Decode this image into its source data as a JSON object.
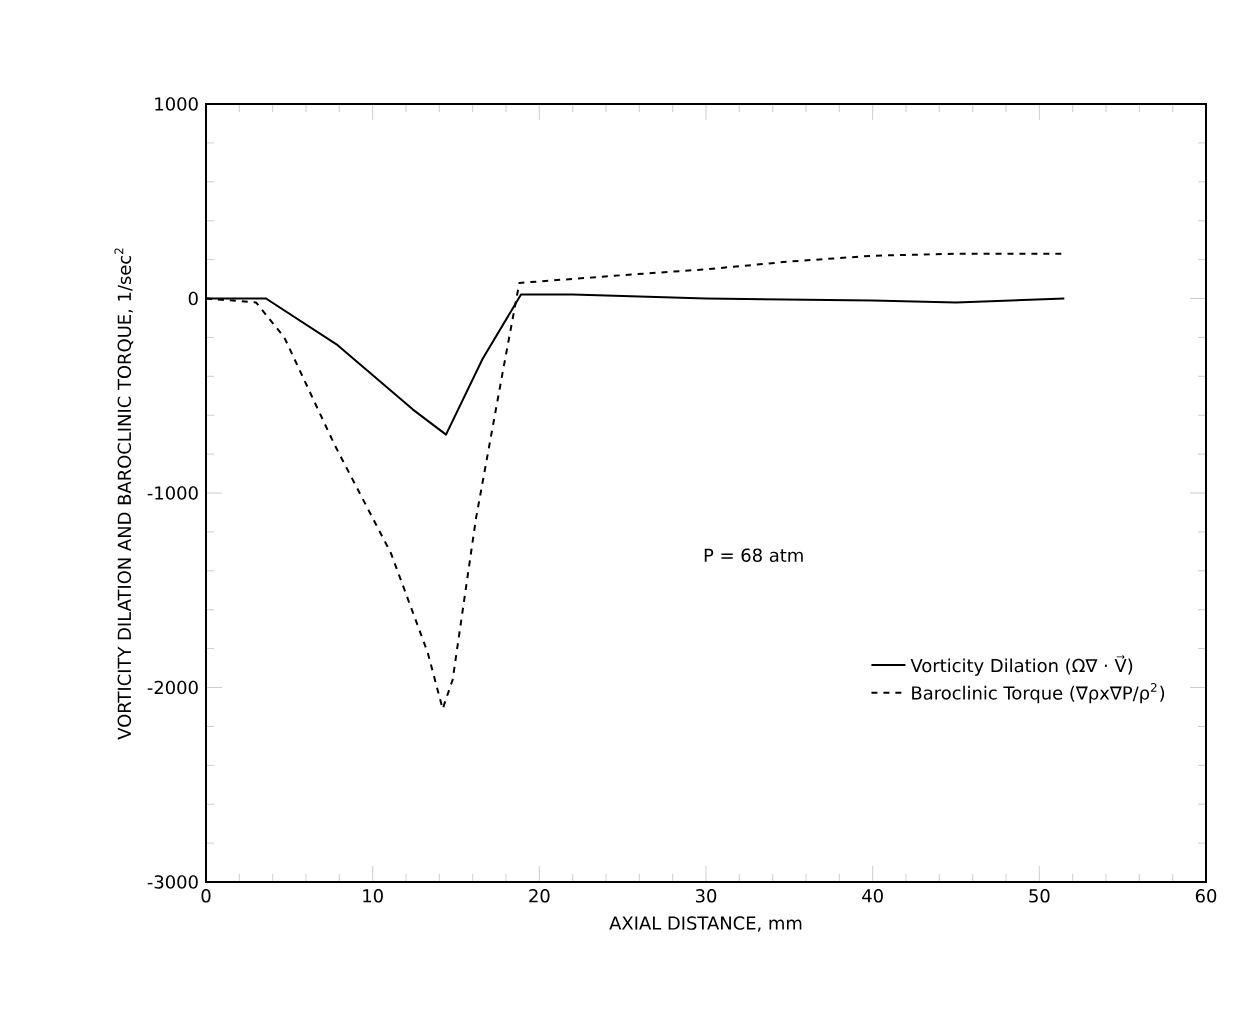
{
  "chart_data": {
    "type": "line",
    "xlabel": "AXIAL DISTANCE, mm",
    "ylabel": "VORTICITY DILATION AND BAROCLINIC TORQUE, 1/sec$^{2}$",
    "xlim": [
      0,
      60
    ],
    "xticks": [
      0,
      10,
      20,
      30,
      40,
      50,
      60
    ],
    "ylim": [
      -3000,
      1000
    ],
    "yticks": [
      -3000,
      -2000,
      -1000,
      0,
      1000
    ],
    "legend": "right",
    "annotations": [
      "P = 68 atm"
    ],
    "series": [
      {
        "name": "Vorticity Dilation (Ω∇ · V⃗)",
        "color": "#000000",
        "line_style": "solid",
        "x": [
          0,
          3.6,
          7.9,
          12.4,
          14.4,
          16.6,
          18.9,
          22,
          30,
          40,
          45,
          51.5
        ],
        "values": [
          0,
          0,
          -240,
          -570,
          -700,
          -310,
          20,
          20,
          0,
          -10,
          -20,
          0
        ]
      },
      {
        "name": "Baroclinic Torque (∇ρx∇P/ρ$^{2}$)",
        "color": "#000000",
        "line_style": "dashed",
        "x": [
          0,
          3,
          4.7,
          7.7,
          11.1,
          13.3,
          14.2,
          14.8,
          16.2,
          17.8,
          18.8,
          25,
          30,
          35,
          40,
          45,
          51.5
        ],
        "values": [
          0,
          -20,
          -200,
          -750,
          -1310,
          -1820,
          -2110,
          -1960,
          -1130,
          -380,
          80,
          120,
          150,
          190,
          220,
          230,
          230
        ]
      }
    ]
  }
}
